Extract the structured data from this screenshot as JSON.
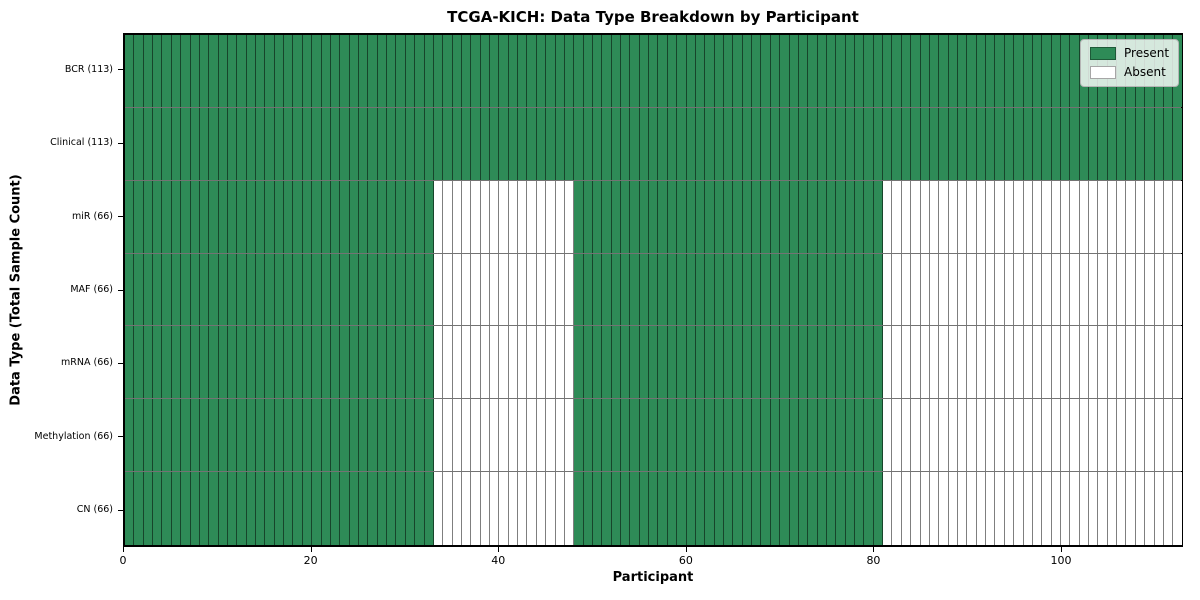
{
  "chart_data": {
    "type": "heatmap",
    "title": "TCGA-KICH: Data Type Breakdown by Participant",
    "xlabel": "Participant",
    "ylabel": "Data Type (Total Sample Count)",
    "n_participants": 113,
    "x_ticks": [
      0,
      20,
      40,
      60,
      80,
      100
    ],
    "rows": [
      {
        "label": "BCR (113)",
        "total": 113,
        "present_ranges": [
          [
            0,
            113
          ]
        ]
      },
      {
        "label": "Clinical (113)",
        "total": 113,
        "present_ranges": [
          [
            0,
            113
          ]
        ]
      },
      {
        "label": "miR (66)",
        "total": 66,
        "present_ranges": [
          [
            0,
            33
          ],
          [
            48,
            81
          ]
        ]
      },
      {
        "label": "MAF (66)",
        "total": 66,
        "present_ranges": [
          [
            0,
            33
          ],
          [
            48,
            81
          ]
        ]
      },
      {
        "label": "mRNA (66)",
        "total": 66,
        "present_ranges": [
          [
            0,
            33
          ],
          [
            48,
            81
          ]
        ]
      },
      {
        "label": "Methylation (66)",
        "total": 66,
        "present_ranges": [
          [
            0,
            33
          ],
          [
            48,
            81
          ]
        ]
      },
      {
        "label": "CN (66)",
        "total": 66,
        "present_ranges": [
          [
            0,
            33
          ],
          [
            48,
            81
          ]
        ]
      }
    ],
    "legend": {
      "position": "upper right",
      "entries": [
        {
          "label": "Present",
          "color": "#2e8b57"
        },
        {
          "label": "Absent",
          "color": "#ffffff"
        }
      ]
    },
    "colors": {
      "present": "#2e8b57",
      "absent": "#ffffff",
      "cell_edge": "rgba(0,0,0,0.5)",
      "spine": "#000000"
    }
  }
}
